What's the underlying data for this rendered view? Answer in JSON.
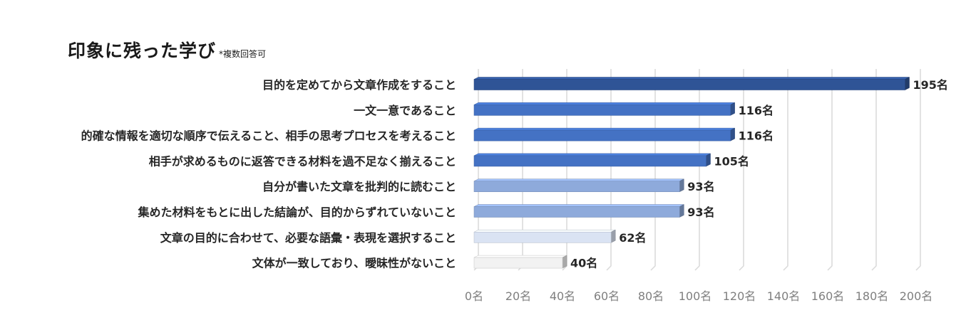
{
  "chart_data": {
    "type": "bar",
    "orientation": "horizontal",
    "title": "印象に残った学び",
    "subtitle": "*複数回答可",
    "categories": [
      "目的を定めてから文章作成をすること",
      "一文一意であること",
      "的確な情報を適切な順序で伝えること、相手の思考プロセスを考えること",
      "相手が求めるものに返答できる材料を過不足なく揃えること",
      "自分が書いた文章を批判的に読むこと",
      "集めた材料をもとに出した結論が、目的からずれていないこと",
      "文章の目的に合わせて、必要な語彙・表現を選択すること",
      "文体が一致しており、曖昧性がないこと"
    ],
    "values": [
      195,
      116,
      116,
      105,
      93,
      93,
      62,
      40
    ],
    "value_labels": [
      "195名",
      "116名",
      "116名",
      "105名",
      "93名",
      "93名",
      "62名",
      "40名"
    ],
    "xlim": [
      0,
      200
    ],
    "x_ticks": [
      0,
      20,
      40,
      60,
      80,
      100,
      120,
      140,
      160,
      180,
      200
    ],
    "x_tick_labels": [
      "0名",
      "20名",
      "40名",
      "60名",
      "80名",
      "100名",
      "120名",
      "140名",
      "160名",
      "180名",
      "200名"
    ],
    "grid": true,
    "bar_colors": [
      "#2f5496",
      "#4472c4",
      "#4472c4",
      "#4472c4",
      "#8eaadb",
      "#8eaadb",
      "#dae3f3",
      "#f2f2f2"
    ]
  }
}
